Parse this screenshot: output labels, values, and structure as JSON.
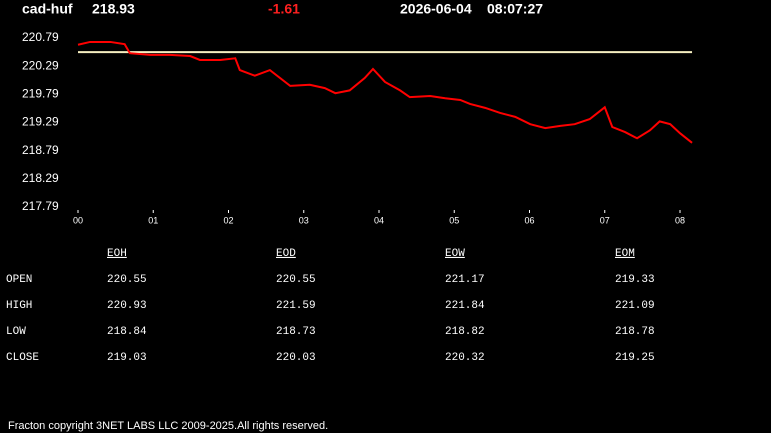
{
  "header": {
    "symbol": "cad-huf",
    "price": "218.93",
    "change": "-1.61",
    "date": "2026-06-04",
    "time": "08:07:27"
  },
  "chart_data": {
    "type": "line",
    "x": [
      0,
      0.16,
      0.43,
      0.62,
      0.69,
      0.96,
      1.22,
      1.49,
      1.62,
      1.89,
      2.09,
      2.15,
      2.35,
      2.55,
      2.82,
      3.08,
      3.28,
      3.42,
      3.61,
      3.81,
      3.92,
      4.08,
      4.28,
      4.41,
      4.68,
      4.88,
      5.08,
      5.21,
      5.41,
      5.61,
      5.81,
      6.01,
      6.21,
      6.41,
      6.6,
      6.8,
      7.0,
      7.1,
      7.27,
      7.43,
      7.6,
      7.73,
      7.87,
      8.0,
      8.16
    ],
    "series": [
      {
        "color": "#ff0000",
        "values": [
          220.67,
          220.72,
          220.72,
          220.68,
          220.52,
          220.49,
          220.49,
          220.47,
          220.4,
          220.4,
          220.43,
          220.22,
          220.12,
          220.22,
          219.94,
          219.96,
          219.9,
          219.81,
          219.86,
          220.08,
          220.24,
          220.01,
          219.86,
          219.74,
          219.76,
          219.72,
          219.69,
          219.62,
          219.55,
          219.46,
          219.39,
          219.26,
          219.19,
          219.23,
          219.26,
          219.35,
          219.56,
          219.21,
          219.12,
          219.01,
          219.15,
          219.31,
          219.26,
          219.1,
          218.93
        ]
      }
    ],
    "reference_line": {
      "value": 220.54,
      "color": "#f5eec0"
    },
    "xlim": [
      0,
      8.2
    ],
    "xticks": [
      {
        "value": 0,
        "label": "00"
      },
      {
        "value": 1,
        "label": "01"
      },
      {
        "value": 2,
        "label": "02"
      },
      {
        "value": 3,
        "label": "03"
      },
      {
        "value": 4,
        "label": "04"
      },
      {
        "value": 5,
        "label": "05"
      },
      {
        "value": 6,
        "label": "06"
      },
      {
        "value": 7,
        "label": "07"
      },
      {
        "value": 8,
        "label": "08"
      }
    ],
    "ylim": [
      217.79,
      220.79
    ],
    "yticks": [
      217.79,
      218.29,
      218.79,
      219.29,
      219.79,
      220.29,
      220.79
    ]
  },
  "table": {
    "columns": [
      "EOH",
      "EOD",
      "EOW",
      "EOM"
    ],
    "rows": [
      {
        "label": "OPEN",
        "values": [
          "220.55",
          "220.55",
          "221.17",
          "219.33"
        ]
      },
      {
        "label": "HIGH",
        "values": [
          "220.93",
          "221.59",
          "221.84",
          "221.09"
        ]
      },
      {
        "label": "LOW",
        "values": [
          "218.84",
          "218.73",
          "218.82",
          "218.78"
        ]
      },
      {
        "label": "CLOSE",
        "values": [
          "219.03",
          "220.03",
          "220.32",
          "219.25"
        ]
      }
    ]
  },
  "footer": "Fracton copyright 3NET LABS LLC 2009-2025.All rights reserved."
}
